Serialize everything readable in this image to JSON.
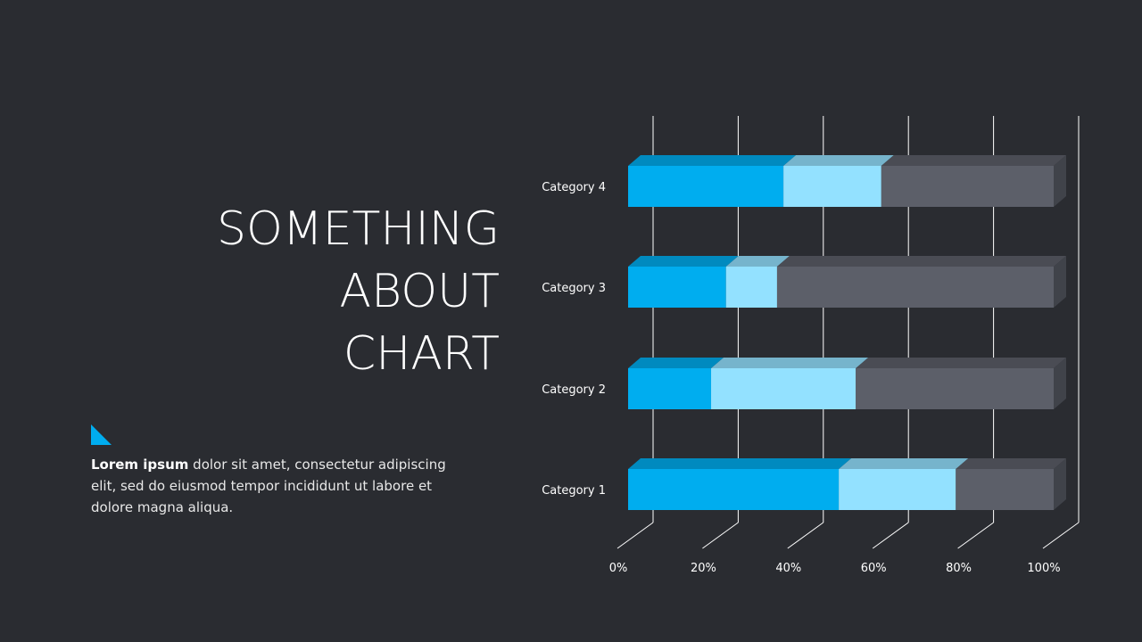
{
  "slide": {
    "title_lines": [
      "SOMETHING",
      "ABOUT",
      "CHART"
    ],
    "body_bold": "Lorem ipsum",
    "body_rest": " dolor sit amet, consectetur adipiscing elit, sed do eiusmod tempor incididunt  ut labore et dolore magna aliqua.",
    "accent_color": "#00adef"
  },
  "chart_data": {
    "type": "bar",
    "orientation": "horizontal",
    "stacked": "percent",
    "style": "3d",
    "categories": [
      "Category 1",
      "Category 2",
      "Category 3",
      "Category 4"
    ],
    "series": [
      {
        "values": [
          49.5,
          19.5,
          23,
          36.5
        ],
        "color": "#00adef"
      },
      {
        "values": [
          27.5,
          34,
          12,
          23
        ],
        "color": "#93e1ff"
      },
      {
        "values": [
          23,
          46.5,
          65,
          40.5
        ],
        "color": "#5c5f69"
      }
    ],
    "xlim": [
      0,
      100
    ],
    "xticks": [
      "0%",
      "20%",
      "40%",
      "60%",
      "80%",
      "100%"
    ],
    "grid": true,
    "legend": "none"
  }
}
